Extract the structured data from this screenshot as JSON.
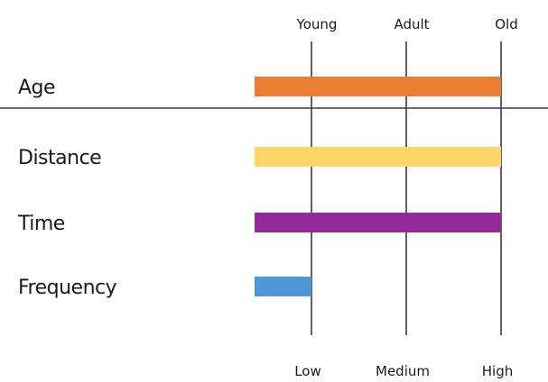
{
  "chart_data": {
    "type": "bar",
    "orientation": "horizontal",
    "categories": [
      "Age",
      "Distance",
      "Time",
      "Frequency"
    ],
    "values": [
      2,
      2,
      2,
      0
    ],
    "colors": [
      "#ec7c30",
      "#fdd666",
      "#922a9a",
      "#4e96d6"
    ],
    "xlim": [
      -0.6,
      2
    ],
    "top_axis": {
      "tick_values": [
        0,
        1,
        2
      ],
      "tick_labels": [
        "Young",
        "Adult",
        "Old"
      ]
    },
    "bottom_axis": {
      "tick_values": [
        0,
        1,
        2
      ],
      "tick_labels": [
        "Low",
        "Medium",
        "High"
      ]
    },
    "grid": true,
    "divider_after": "Age"
  }
}
